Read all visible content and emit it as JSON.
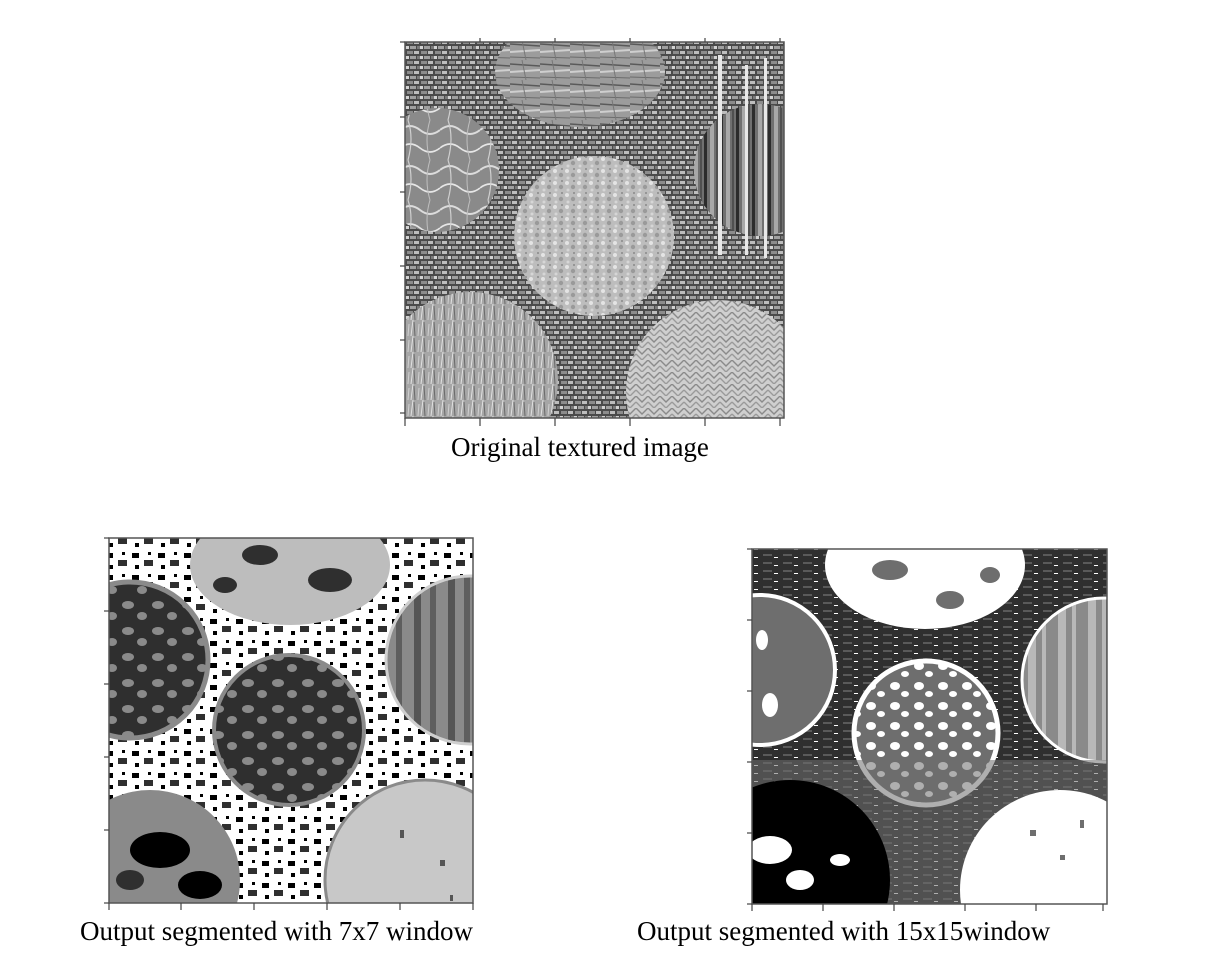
{
  "figure": {
    "panels": [
      {
        "id": "original",
        "caption": "Original textured image"
      },
      {
        "id": "seg7",
        "caption": "Output segmented with 7x7 window"
      },
      {
        "id": "seg15",
        "caption": "Output segmented with 15x15window"
      }
    ]
  },
  "colors": {
    "black": "#000000",
    "dark_gray": "#2f2f2f",
    "mid_gray": "#6e6e6e",
    "light_gray": "#bdbdbd",
    "white": "#ffffff"
  }
}
